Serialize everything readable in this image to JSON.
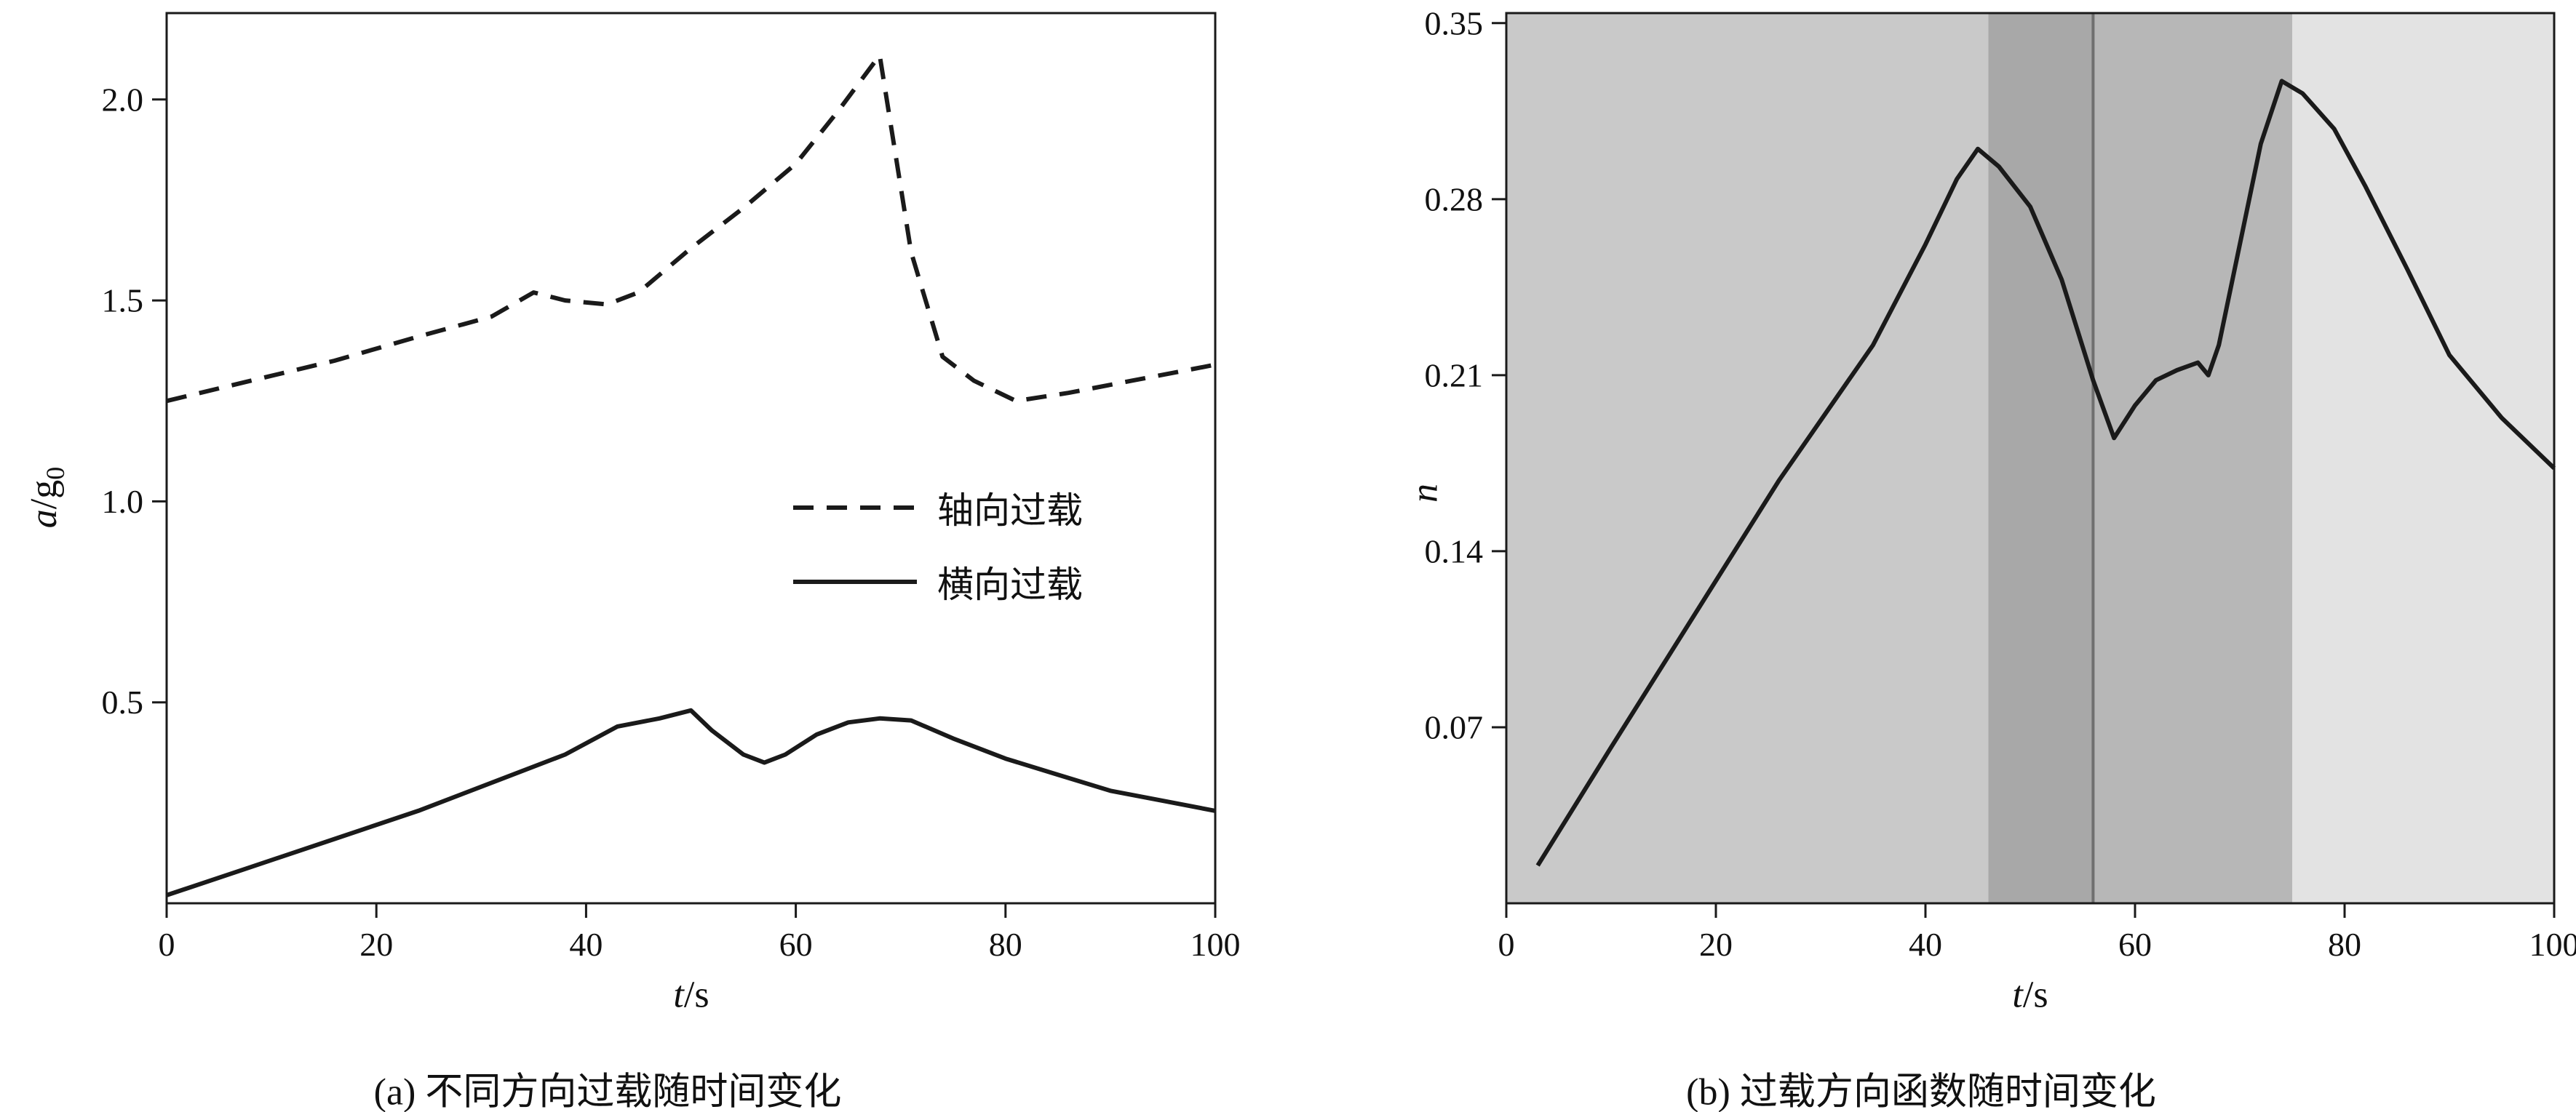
{
  "figure": {
    "panels": {
      "a": {
        "xlabel_italic": "t",
        "xlabel_rest": "/s",
        "ylabel_italic": "a",
        "ylabel_mid": "/g",
        "ylabel_sub": "0"
      },
      "b": {
        "xlabel_italic": "t",
        "xlabel_rest": "/s",
        "ylabel_italic": "n"
      }
    }
  },
  "chart_data": [
    {
      "id": "a",
      "type": "line",
      "title": "(a) 不同方向过载随时间变化",
      "xlabel": "t/s",
      "ylabel": "a/g0",
      "xlim": [
        0,
        100
      ],
      "ylim": [
        0,
        2.215
      ],
      "xticks": [
        0,
        20,
        40,
        60,
        80,
        100
      ],
      "xtick_labels": [
        "0",
        "20",
        "40",
        "60",
        "80",
        "100"
      ],
      "yticks": [
        0.5,
        1.0,
        1.5,
        2.0
      ],
      "ytick_labels": [
        "0.5",
        "1.0",
        "1.5",
        "2.0"
      ],
      "grid": false,
      "legend_position": "center-right",
      "series": [
        {
          "name": "轴向过载",
          "style": "dashed",
          "color": "#1a1a1a",
          "x": [
            0,
            8,
            16,
            24,
            31,
            35,
            38,
            42,
            45,
            50,
            55,
            60,
            64,
            68,
            71,
            74,
            77,
            81,
            86,
            92,
            100
          ],
          "y": [
            1.25,
            1.3,
            1.35,
            1.41,
            1.46,
            1.52,
            1.5,
            1.49,
            1.52,
            1.63,
            1.73,
            1.84,
            1.97,
            2.11,
            1.62,
            1.36,
            1.3,
            1.25,
            1.27,
            1.3,
            1.34
          ]
        },
        {
          "name": "横向过载",
          "style": "solid",
          "color": "#1a1a1a",
          "x": [
            0,
            8,
            16,
            24,
            32,
            38,
            43,
            47,
            50,
            52,
            55,
            57,
            59,
            62,
            65,
            68,
            71,
            75,
            80,
            85,
            90,
            95,
            100
          ],
          "y": [
            0.02,
            0.09,
            0.16,
            0.23,
            0.31,
            0.37,
            0.44,
            0.46,
            0.48,
            0.43,
            0.37,
            0.35,
            0.37,
            0.42,
            0.45,
            0.46,
            0.455,
            0.41,
            0.36,
            0.32,
            0.28,
            0.255,
            0.23
          ]
        }
      ]
    },
    {
      "id": "b",
      "type": "line",
      "title": "(b) 过载方向函数随时间变化",
      "xlabel": "t/s",
      "ylabel": "n",
      "xlim": [
        0,
        100
      ],
      "ylim": [
        0,
        0.354
      ],
      "xticks": [
        0,
        20,
        40,
        60,
        80,
        100
      ],
      "xtick_labels": [
        "0",
        "20",
        "40",
        "60",
        "80",
        "100"
      ],
      "yticks": [
        0.07,
        0.14,
        0.21,
        0.28,
        0.35
      ],
      "ytick_labels": [
        "0.07",
        "0.14",
        "0.21",
        "0.28",
        "0.35"
      ],
      "grid": false,
      "bands": [
        {
          "x0": 0,
          "x1": 46,
          "color": "#c9c9c9"
        },
        {
          "x0": 46,
          "x1": 56,
          "color": "#a8a8a8"
        },
        {
          "x0": 56,
          "x1": 75,
          "color": "#b7b7b7"
        },
        {
          "x0": 75,
          "x1": 100,
          "color": "#e3e3e3"
        }
      ],
      "dividers": [
        {
          "x": 56,
          "color": "#6f6f6f"
        }
      ],
      "series": [
        {
          "name": "n",
          "style": "solid",
          "color": "#1a1a1a",
          "x": [
            3,
            10,
            18,
            26,
            35,
            40,
            43,
            45,
            47,
            50,
            53,
            56,
            58,
            60,
            62,
            64,
            66,
            67,
            68,
            70,
            72,
            74,
            76,
            79,
            82,
            86,
            90,
            95,
            100
          ],
          "y": [
            0.015,
            0.062,
            0.115,
            0.168,
            0.222,
            0.262,
            0.288,
            0.3,
            0.293,
            0.277,
            0.248,
            0.208,
            0.185,
            0.198,
            0.208,
            0.212,
            0.215,
            0.21,
            0.222,
            0.262,
            0.302,
            0.327,
            0.322,
            0.308,
            0.285,
            0.252,
            0.218,
            0.193,
            0.173
          ]
        }
      ]
    }
  ]
}
